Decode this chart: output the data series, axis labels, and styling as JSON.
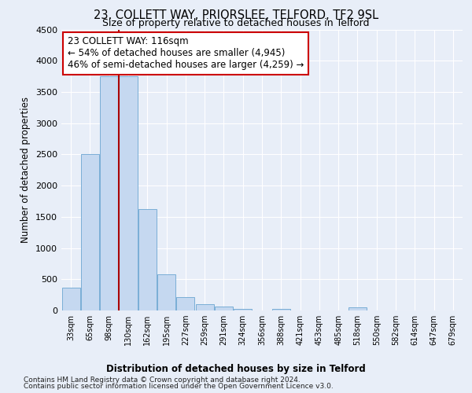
{
  "title": "23, COLLETT WAY, PRIORSLEE, TELFORD, TF2 9SL",
  "subtitle": "Size of property relative to detached houses in Telford",
  "xlabel": "Distribution of detached houses by size in Telford",
  "ylabel": "Number of detached properties",
  "categories": [
    "33sqm",
    "65sqm",
    "98sqm",
    "130sqm",
    "162sqm",
    "195sqm",
    "227sqm",
    "259sqm",
    "291sqm",
    "324sqm",
    "356sqm",
    "388sqm",
    "421sqm",
    "453sqm",
    "485sqm",
    "518sqm",
    "550sqm",
    "582sqm",
    "614sqm",
    "647sqm",
    "679sqm"
  ],
  "values": [
    370,
    2500,
    3750,
    3750,
    1620,
    580,
    220,
    100,
    60,
    30,
    0,
    30,
    0,
    0,
    0,
    55,
    0,
    0,
    0,
    0,
    0
  ],
  "bar_color": "#c5d8f0",
  "bar_edge_color": "#7aaed6",
  "vline_x": 2.5,
  "vline_color": "#aa0000",
  "annotation_text": "23 COLLETT WAY: 116sqm\n← 54% of detached houses are smaller (4,945)\n46% of semi-detached houses are larger (4,259) →",
  "annotation_box_facecolor": "#ffffff",
  "annotation_box_edgecolor": "#cc0000",
  "ylim": [
    0,
    4500
  ],
  "yticks": [
    0,
    500,
    1000,
    1500,
    2000,
    2500,
    3000,
    3500,
    4000,
    4500
  ],
  "bg_color": "#e8eef8",
  "grid_color": "#ffffff",
  "footer_line1": "Contains HM Land Registry data © Crown copyright and database right 2024.",
  "footer_line2": "Contains public sector information licensed under the Open Government Licence v3.0."
}
